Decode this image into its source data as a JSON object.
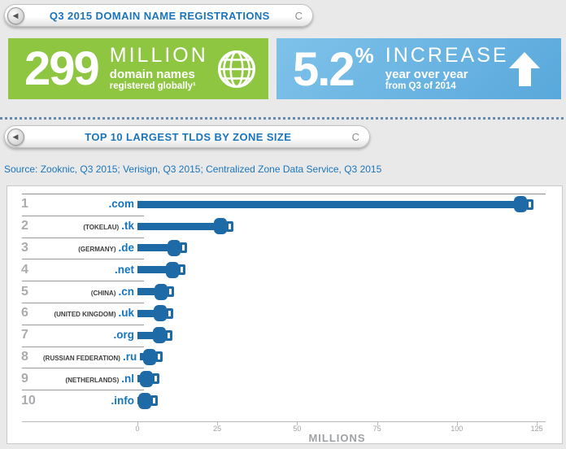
{
  "header1": {
    "title": "Q3 2015 DOMAIN NAME REGISTRATIONS",
    "refresh_label": "C"
  },
  "header2": {
    "title": "TOP 10 LARGEST TLDS BY ZONE SIZE",
    "refresh_label": "C"
  },
  "stat_green": {
    "value": "299",
    "unit": "MILLION",
    "line1": "domain names",
    "line2": "registered globally¹",
    "bg": "#8EC641"
  },
  "stat_blue": {
    "value": "5.2",
    "percent_sign": "%",
    "headline": "INCREASE",
    "line1": "year over year",
    "line2": "from Q3 of 2014",
    "bg": "#61AEDE"
  },
  "source_line": "Source: Zooknic, Q3 2015; Verisign, Q3 2015; Centralized Zone Data Service, Q3 2015",
  "chart_data": {
    "type": "bar",
    "orientation": "horizontal",
    "title": "TOP 10 LARGEST TLDS BY ZONE SIZE",
    "xlabel": "MILLIONS",
    "xlim": [
      0,
      125
    ],
    "xticks": [
      0,
      25,
      50,
      75,
      100,
      125
    ],
    "bar_color": "#1E6AA7",
    "units": "millions of domain names",
    "rows": [
      {
        "rank": "1",
        "country": "",
        "tld": ".com",
        "value": 124
      },
      {
        "rank": "2",
        "country": "(TOKELAU)",
        "tld": ".tk",
        "value": 30
      },
      {
        "rank": "3",
        "country": "(GERMANY)",
        "tld": ".de",
        "value": 15.5
      },
      {
        "rank": "4",
        "country": "",
        "tld": ".net",
        "value": 15
      },
      {
        "rank": "5",
        "country": "(CHINA)",
        "tld": ".cn",
        "value": 11.5
      },
      {
        "rank": "6",
        "country": "(UNITED KINGDOM)",
        "tld": ".uk",
        "value": 11.2
      },
      {
        "rank": "7",
        "country": "",
        "tld": ".org",
        "value": 11
      },
      {
        "rank": "8",
        "country": "(RUSSIAN FEDERATION)",
        "tld": ".ru",
        "value": 7
      },
      {
        "rank": "9",
        "country": "(NETHERLANDS)",
        "tld": ".nl",
        "value": 6.8
      },
      {
        "rank": "10",
        "country": "",
        "tld": ".info",
        "value": 6
      }
    ]
  }
}
